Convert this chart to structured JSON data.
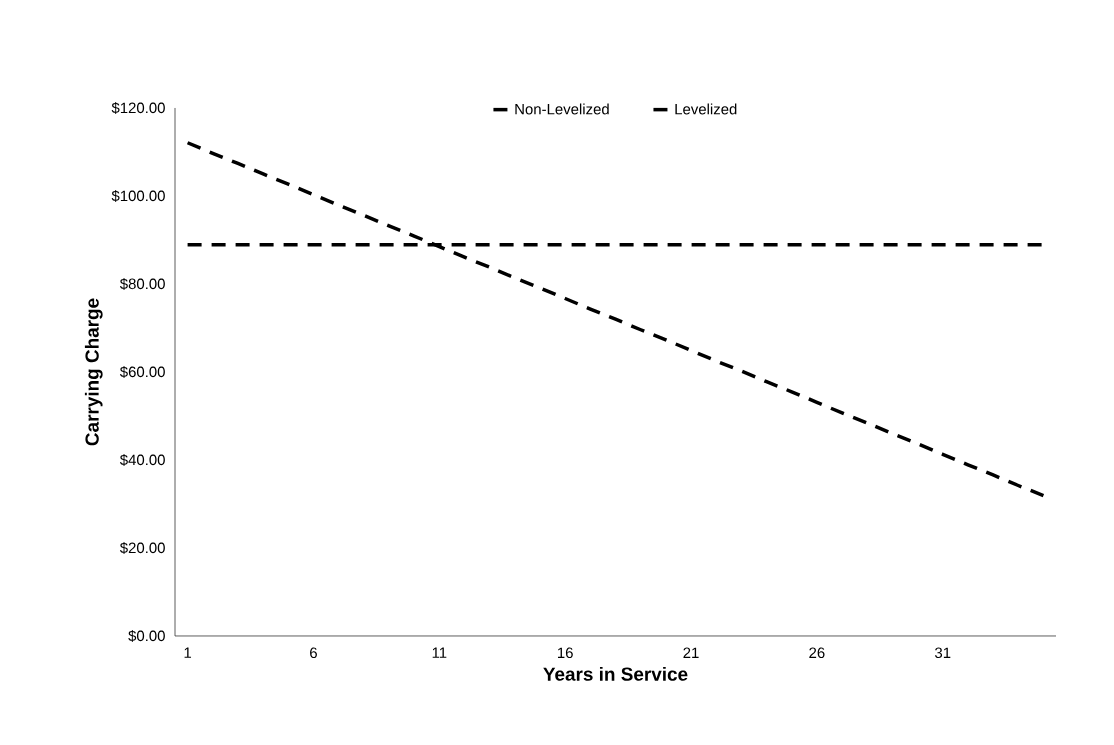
{
  "chart_data": {
    "type": "line",
    "xlabel": "Years in Service",
    "ylabel": "Carrying Charge",
    "categories": [
      "1",
      null,
      null,
      null,
      null,
      "6",
      null,
      null,
      null,
      null,
      "11",
      null,
      null,
      null,
      null,
      "16",
      null,
      null,
      null,
      null,
      "21",
      null,
      null,
      null,
      null,
      "26",
      null,
      null,
      null,
      null,
      "31",
      null,
      null,
      null,
      null
    ],
    "series": [
      {
        "name": "Non-Levelized",
        "color": "#000000",
        "line_style": "dashed",
        "values": [
          112.1,
          109.7,
          107.4,
          105.0,
          102.7,
          100.3,
          97.9,
          95.6,
          93.2,
          90.9,
          88.5,
          86.1,
          83.8,
          81.4,
          79.1,
          76.7,
          74.3,
          72.0,
          69.6,
          67.3,
          64.9,
          62.5,
          60.2,
          57.8,
          55.5,
          53.1,
          50.7,
          48.4,
          46.0,
          43.7,
          41.3,
          38.9,
          36.6,
          34.2,
          31.9
        ]
      },
      {
        "name": "Levelized",
        "color": "#000000",
        "line_style": "dashed",
        "values": [
          88.9,
          88.9,
          88.9,
          88.9,
          88.9,
          88.9,
          88.9,
          88.9,
          88.9,
          88.9,
          88.9,
          88.9,
          88.9,
          88.9,
          88.9,
          88.9,
          88.9,
          88.9,
          88.9,
          88.9,
          88.9,
          88.9,
          88.9,
          88.9,
          88.9,
          88.9,
          88.9,
          88.9,
          88.9,
          88.9,
          88.9,
          88.9,
          88.9,
          88.9,
          88.9
        ]
      }
    ],
    "ylim": [
      0,
      120
    ],
    "yticks": [
      {
        "value": 0,
        "label": "$0.00"
      },
      {
        "value": 20,
        "label": "$20.00"
      },
      {
        "value": 40,
        "label": "$40.00"
      },
      {
        "value": 60,
        "label": "$60.00"
      },
      {
        "value": 80,
        "label": "$80.00"
      },
      {
        "value": 100,
        "label": "$100.00"
      },
      {
        "value": 120,
        "label": "$120.00"
      }
    ],
    "grid": false,
    "legend": "top",
    "marker": "none"
  }
}
